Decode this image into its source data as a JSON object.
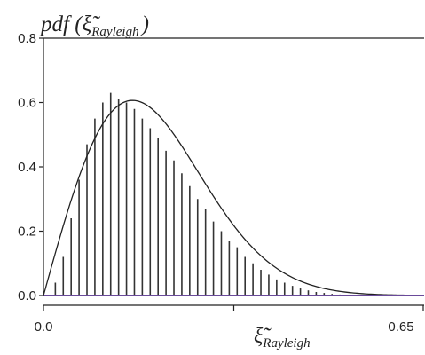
{
  "chart_data": {
    "type": "bar",
    "title": "",
    "y_axis_title": {
      "main": "pdf (",
      "symbol": "ξ̃",
      "subscript": "Rayleigh",
      "close": ")"
    },
    "x_axis_title": {
      "symbol": "ξ̃",
      "subscript": "Rayleigh"
    },
    "xlim": [
      0.0,
      0.65
    ],
    "ylim": [
      0.0,
      0.8
    ],
    "x_tick_labels": [
      "0.0",
      "0.65"
    ],
    "y_tick_labels": [
      "0.0",
      "0.2",
      "0.4",
      "0.6",
      "0.8"
    ],
    "y_ticks": [
      0.0,
      0.2,
      0.4,
      0.6,
      0.8
    ],
    "x_ticks": [
      0.0,
      0.325,
      0.65
    ],
    "grid": false,
    "bin_width": 0.0135,
    "bar_values": [
      0.0,
      0.04,
      0.12,
      0.24,
      0.36,
      0.47,
      0.55,
      0.6,
      0.63,
      0.61,
      0.6,
      0.58,
      0.55,
      0.52,
      0.49,
      0.45,
      0.42,
      0.38,
      0.34,
      0.3,
      0.27,
      0.23,
      0.2,
      0.17,
      0.15,
      0.12,
      0.1,
      0.08,
      0.065,
      0.05,
      0.04,
      0.03,
      0.022,
      0.016,
      0.011,
      0.008,
      0.005,
      0.003,
      0.002,
      0.001,
      0.0005,
      0.0
    ],
    "fit_curve": {
      "type": "rayleigh",
      "sigma": 0.152
    },
    "colors": {
      "bars": "#333333",
      "curve": "#222222",
      "baseline": "#6a4a9a",
      "axes": "#222222"
    }
  }
}
